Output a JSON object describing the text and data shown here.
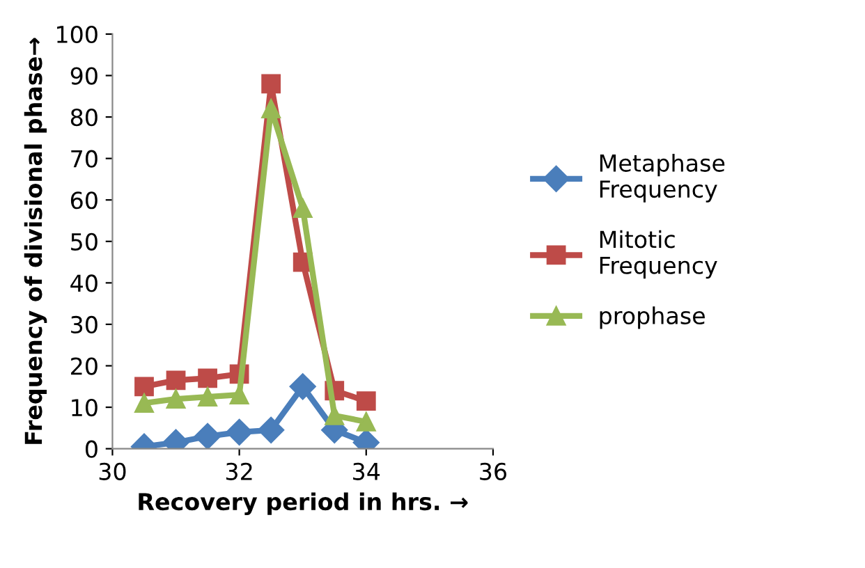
{
  "chart_data": {
    "type": "line",
    "xlabel": "Recovery period in hrs. →",
    "ylabel": "Frequency of divisional phase→",
    "x": [
      30.5,
      31,
      31.5,
      32,
      32.5,
      33,
      33.5,
      34
    ],
    "series": [
      {
        "name": "Metaphase\nFrequency",
        "color": "#4a7ebb",
        "marker": "diamond",
        "values": [
          0.5,
          1.5,
          3,
          4,
          4.5,
          15,
          4.5,
          1.5
        ]
      },
      {
        "name": "Mitotic\nFrequency",
        "color": "#be4b48",
        "marker": "square",
        "values": [
          15,
          16.5,
          17,
          18,
          88,
          45,
          14,
          11.5
        ]
      },
      {
        "name": "prophase",
        "color": "#98b954",
        "marker": "triangle",
        "values": [
          11,
          12,
          12.5,
          13,
          82,
          58,
          8,
          6.5
        ]
      }
    ],
    "xlim": [
      30,
      36
    ],
    "xticks": [
      30,
      32,
      34,
      36
    ],
    "ylim": [
      0,
      100
    ],
    "yticks": [
      0,
      10,
      20,
      30,
      40,
      50,
      60,
      70,
      80,
      90,
      100
    ],
    "grid": false,
    "legend": "right",
    "line_style": "solid"
  }
}
